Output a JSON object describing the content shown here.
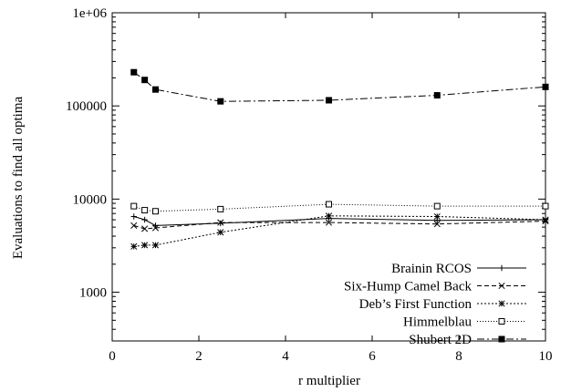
{
  "chart_data": {
    "type": "line",
    "xlabel": "r multiplier",
    "ylabel": "Evaluations to find all optima",
    "xlim": [
      0,
      10
    ],
    "ylim": [
      300,
      1000000
    ],
    "yscale": "log",
    "grid": false,
    "legend_position": "bottom-right",
    "x_ticks": [
      0,
      2,
      4,
      6,
      8,
      10
    ],
    "x_tick_labels": [
      "0",
      "2",
      "4",
      "6",
      "8",
      "10"
    ],
    "y_ticks": [
      1000,
      10000,
      100000,
      1000000
    ],
    "y_tick_labels": [
      "1000",
      "10000",
      "100000",
      "1e+06"
    ],
    "series": [
      {
        "name": "Brainin RCOS",
        "marker": "plus",
        "dash": "solid",
        "x": [
          0.5,
          0.75,
          1.0,
          2.5,
          5.0,
          7.5,
          10.0
        ],
        "y": [
          6500,
          6000,
          5200,
          5500,
          6200,
          5900,
          6000
        ]
      },
      {
        "name": "Six-Hump Camel Back",
        "marker": "cross",
        "dash": "dashed",
        "x": [
          0.5,
          0.75,
          1.0,
          2.5,
          5.0,
          7.5,
          10.0
        ],
        "y": [
          5200,
          4800,
          4900,
          5600,
          5600,
          5400,
          5800
        ]
      },
      {
        "name": "Deb’s First Function",
        "marker": "star",
        "dash": "dotted",
        "x": [
          0.5,
          0.75,
          1.0,
          2.5,
          5.0,
          7.5,
          10.0
        ],
        "y": [
          3100,
          3200,
          3200,
          4400,
          6600,
          6500,
          6000
        ]
      },
      {
        "name": "Himmelblau",
        "marker": "open-square",
        "dash": "fine-dotted",
        "x": [
          0.5,
          0.75,
          1.0,
          2.5,
          5.0,
          7.5,
          10.0
        ],
        "y": [
          8400,
          7600,
          7400,
          7800,
          8800,
          8400,
          8400
        ]
      },
      {
        "name": "Shubert 2D",
        "marker": "filled-square",
        "dash": "dash-dot",
        "x": [
          0.5,
          0.75,
          1.0,
          2.5,
          5.0,
          7.5,
          10.0
        ],
        "y": [
          230000,
          190000,
          150000,
          112000,
          115000,
          130000,
          160000
        ]
      }
    ]
  }
}
